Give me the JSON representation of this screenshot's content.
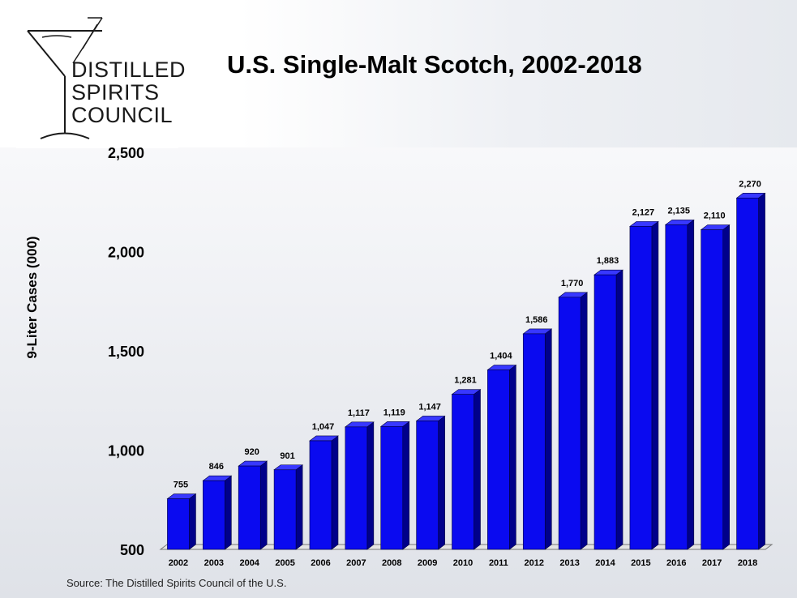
{
  "logo": {
    "line1": "DISTILLED",
    "line2": "SPIRITS",
    "line3": "COUNCIL",
    "icon": "martini-glass-icon"
  },
  "source": "Source:  The Distilled Spirits Council of the U.S.",
  "colors": {
    "bar_front": "#0a0af0",
    "bar_side": "#00008a",
    "bar_top": "#3838ff",
    "floor": "#e4e4e4"
  },
  "chart_data": {
    "type": "bar",
    "title": "U.S. Single-Malt Scotch, 2002-2018",
    "xlabel": "",
    "ylabel": "9-Liter Cases (000)",
    "ylim": [
      500,
      2500
    ],
    "yticks": [
      "500",
      "1,000",
      "1,500",
      "2,000",
      "2,500"
    ],
    "ytick_values": [
      500,
      1000,
      1500,
      2000,
      2500
    ],
    "categories": [
      "2002",
      "2003",
      "2004",
      "2005",
      "2006",
      "2007",
      "2008",
      "2009",
      "2010",
      "2011",
      "2012",
      "2013",
      "2014",
      "2015",
      "2016",
      "2017",
      "2018"
    ],
    "values": [
      755,
      846,
      920,
      901,
      1047,
      1117,
      1119,
      1147,
      1281,
      1404,
      1586,
      1770,
      1883,
      2127,
      2135,
      2110,
      2270
    ],
    "data_labels": [
      "755",
      "846",
      "920",
      "901",
      "1,047",
      "1,117",
      "1,119",
      "1,147",
      "1,281",
      "1,404",
      "1,586",
      "1,770",
      "1,883",
      "2,127",
      "2,135",
      "2,110",
      "2,270"
    ],
    "grid": false,
    "legend": "none",
    "style": "3d-bar"
  }
}
